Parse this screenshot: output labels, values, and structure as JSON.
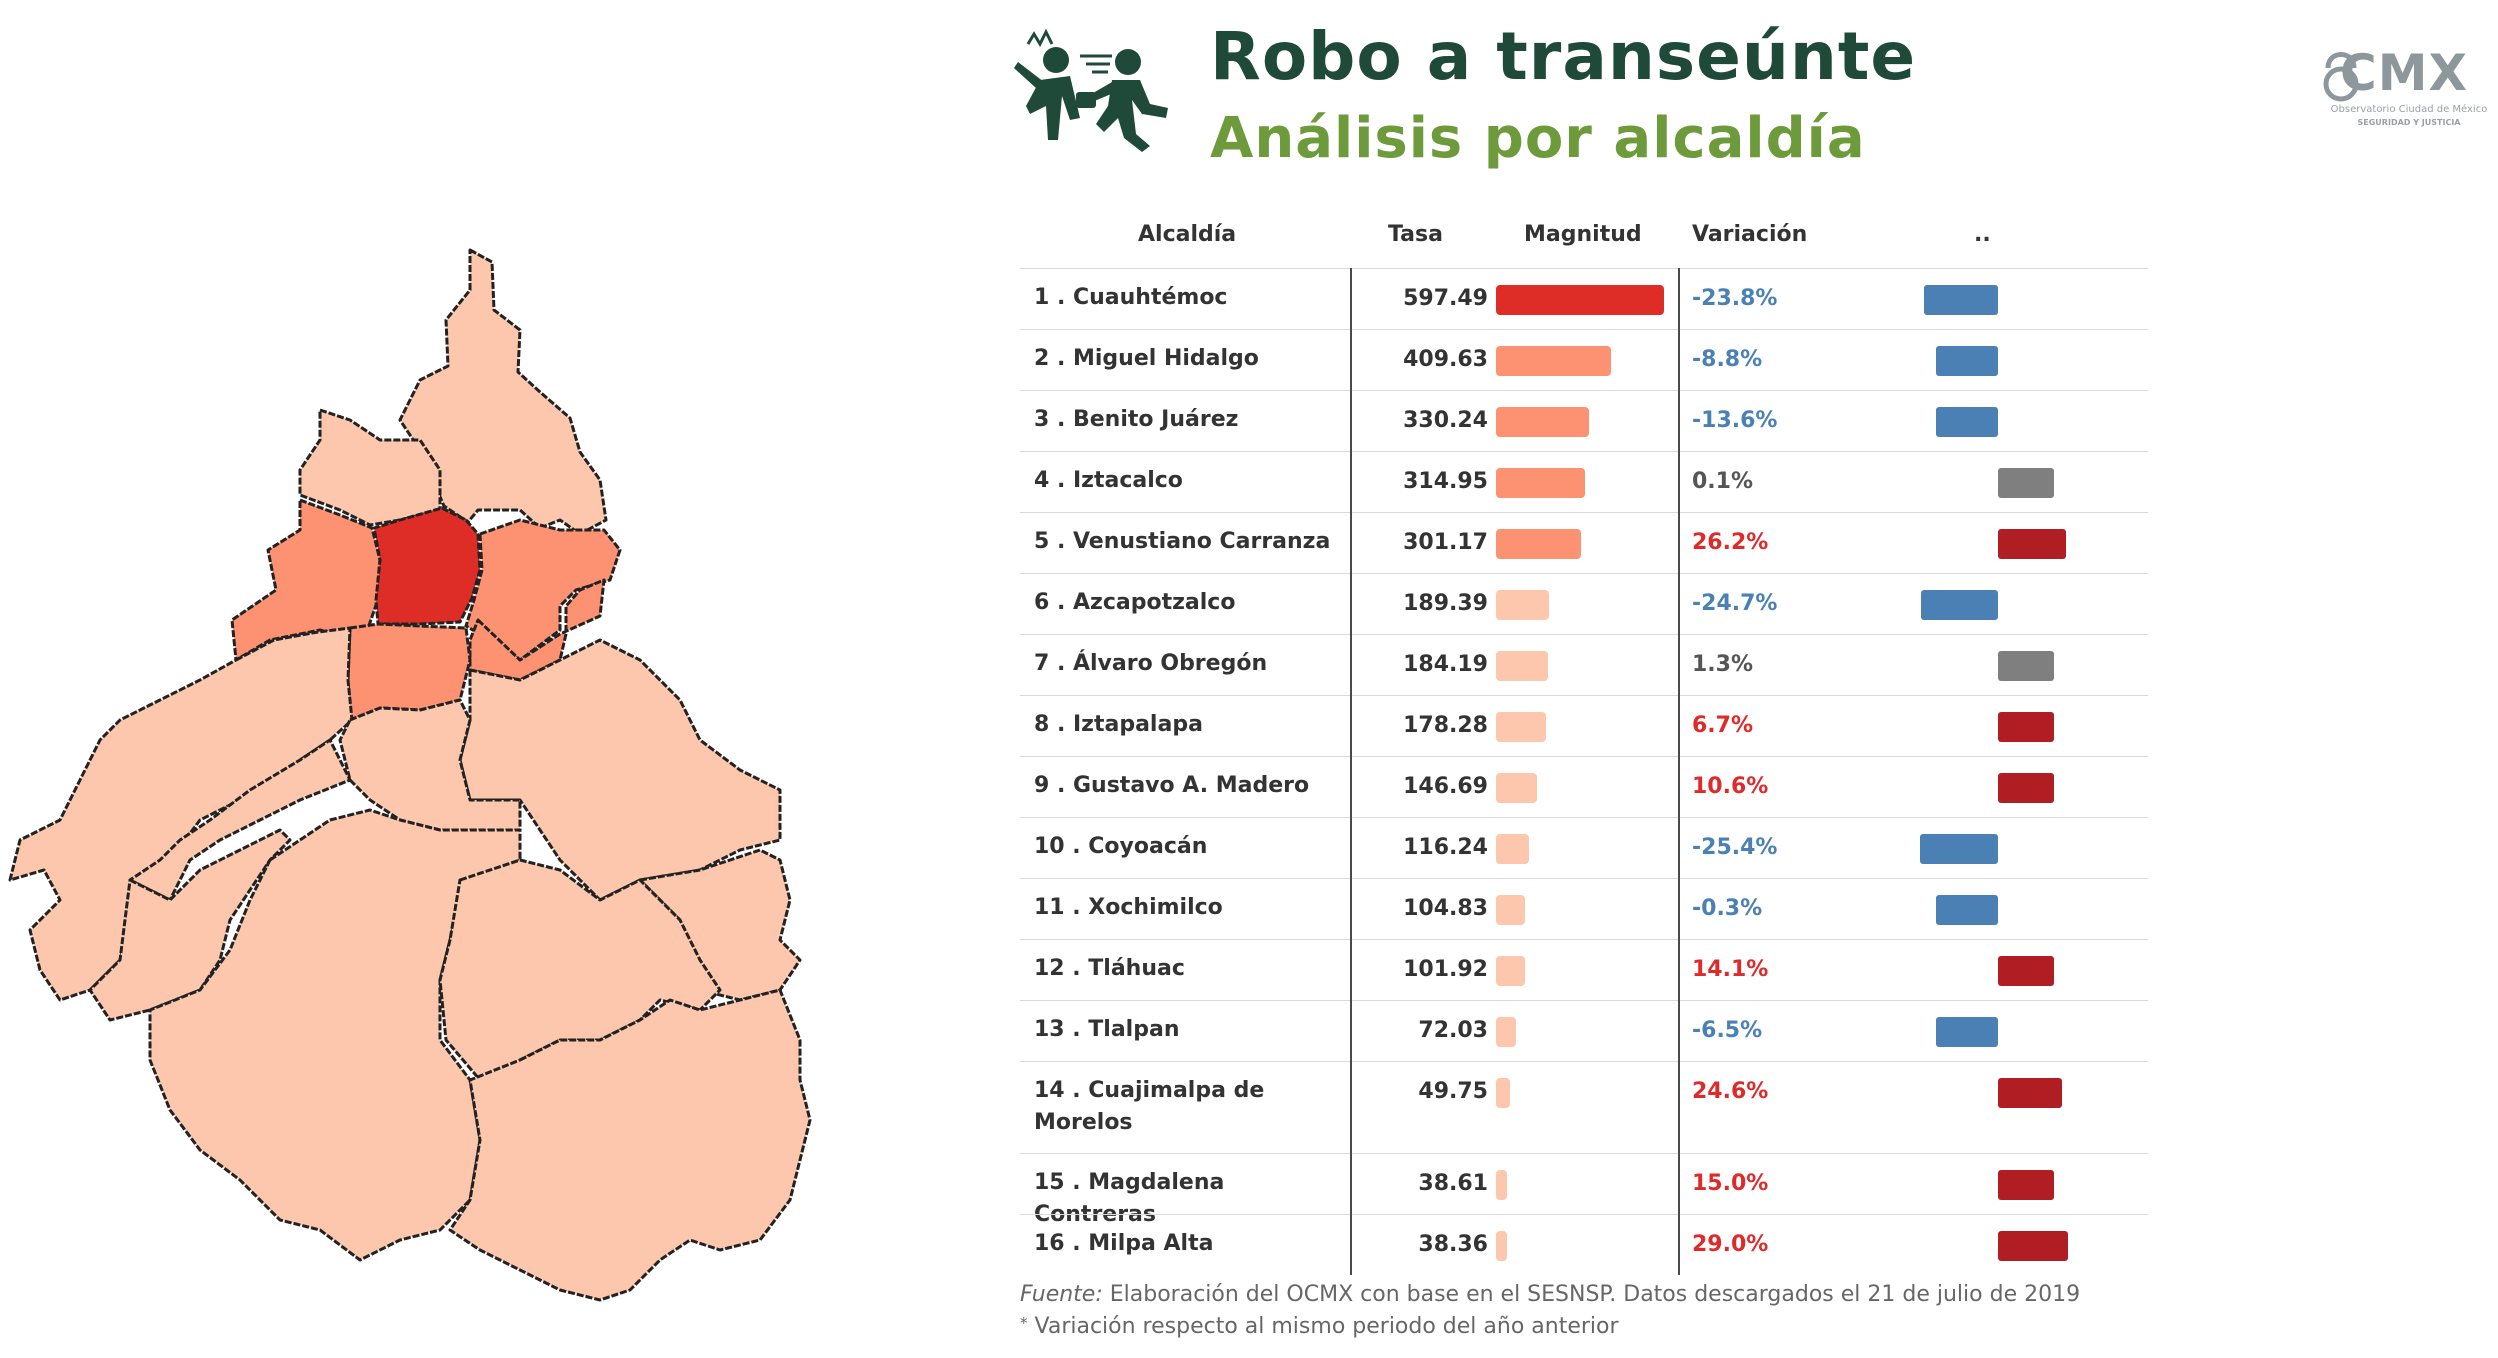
{
  "header": {
    "title": "Robo a transeúnte",
    "subtitle": "Análisis por alcaldía",
    "icon": "robbery-icon",
    "logo_text": "CMX",
    "logo_sub1": "Observatorio Ciudad de México",
    "logo_sub2": "SEGURIDAD Y JUSTICIA"
  },
  "colors": {
    "title": "#1f4a3a",
    "subtitle": "#6d9a3a",
    "negative": "#4a80b4",
    "neutral": "#7f7f7f",
    "positive": "#b01e24",
    "negative_text": "#4a80b4",
    "positive_text": "#e02a2a",
    "neutral_text": "#555555",
    "map_levels": [
      "#fcc7ad",
      "#fc9272",
      "#de2d26"
    ]
  },
  "chart_data": {
    "type": "table",
    "columns": [
      "Alcaldía",
      "Tasa",
      "Magnitud",
      "Variación",
      ".."
    ],
    "rows": [
      {
        "rank": "1 .",
        "name": "Cuauhtémoc",
        "rate": 597.49,
        "variation": -23.8,
        "variation_label": "-23.8%"
      },
      {
        "rank": "2 .",
        "name": "Miguel Hidalgo",
        "rate": 409.63,
        "variation": -8.8,
        "variation_label": "-8.8%"
      },
      {
        "rank": "3 .",
        "name": "Benito Juárez",
        "rate": 330.24,
        "variation": -13.6,
        "variation_label": "-13.6%"
      },
      {
        "rank": "4 .",
        "name": "Iztacalco",
        "rate": 314.95,
        "variation": 0.1,
        "variation_label": "0.1%"
      },
      {
        "rank": "5 .",
        "name": "Venustiano Carranza",
        "rate": 301.17,
        "variation": 26.2,
        "variation_label": "26.2%"
      },
      {
        "rank": "6 .",
        "name": "Azcapotzalco",
        "rate": 189.39,
        "variation": -24.7,
        "variation_label": "-24.7%"
      },
      {
        "rank": "7 .",
        "name": "Álvaro Obregón",
        "rate": 184.19,
        "variation": 1.3,
        "variation_label": "1.3%"
      },
      {
        "rank": "8 .",
        "name": "Iztapalapa",
        "rate": 178.28,
        "variation": 6.7,
        "variation_label": "6.7%"
      },
      {
        "rank": "9 .",
        "name": "Gustavo A. Madero",
        "rate": 146.69,
        "variation": 10.6,
        "variation_label": "10.6%"
      },
      {
        "rank": "10 .",
        "name": "Coyoacán",
        "rate": 116.24,
        "variation": -25.4,
        "variation_label": "-25.4%"
      },
      {
        "rank": "11 .",
        "name": "Xochimilco",
        "rate": 104.83,
        "variation": -0.3,
        "variation_label": "-0.3%"
      },
      {
        "rank": "12 .",
        "name": "Tláhuac",
        "rate": 101.92,
        "variation": 14.1,
        "variation_label": "14.1%"
      },
      {
        "rank": "13 .",
        "name": "Tlalpan",
        "rate": 72.03,
        "variation": -6.5,
        "variation_label": "-6.5%"
      },
      {
        "rank": "14 .",
        "name": "Cuajimalpa de Morelos",
        "rate": 49.75,
        "variation": 24.6,
        "variation_label": "24.6%"
      },
      {
        "rank": "15 .",
        "name": "Magdalena Contreras",
        "rate": 38.61,
        "variation": 15.0,
        "variation_label": "15.0%"
      },
      {
        "rank": "16 .",
        "name": "Milpa Alta",
        "rate": 38.36,
        "variation": 29.0,
        "variation_label": "29.0%"
      }
    ]
  },
  "map": {
    "regions": [
      {
        "name": "Gustavo A. Madero",
        "level": 0
      },
      {
        "name": "Azcapotzalco",
        "level": 0
      },
      {
        "name": "Miguel Hidalgo",
        "level": 1
      },
      {
        "name": "Cuauhtémoc",
        "level": 2
      },
      {
        "name": "Venustiano Carranza",
        "level": 1
      },
      {
        "name": "Iztacalco",
        "level": 1
      },
      {
        "name": "Benito Juárez",
        "level": 1
      },
      {
        "name": "Álvaro Obregón",
        "level": 0
      },
      {
        "name": "Coyoacán",
        "level": 0
      },
      {
        "name": "Iztapalapa",
        "level": 0
      },
      {
        "name": "Cuajimalpa de Morelos",
        "level": 0
      },
      {
        "name": "Magdalena Contreras",
        "level": 0
      },
      {
        "name": "Tlalpan",
        "level": 0
      },
      {
        "name": "Xochimilco",
        "level": 0
      },
      {
        "name": "Tláhuac",
        "level": 0
      },
      {
        "name": "Milpa Alta",
        "level": 0
      }
    ]
  },
  "footer": {
    "source_label": "Fuente:",
    "source_text": " Elaboración del OCMX con base en el SESNSP. Datos descargados el 21 de julio de 2019",
    "note_mark": "*",
    "note_text": " Variación respecto al mismo periodo del año anterior"
  }
}
